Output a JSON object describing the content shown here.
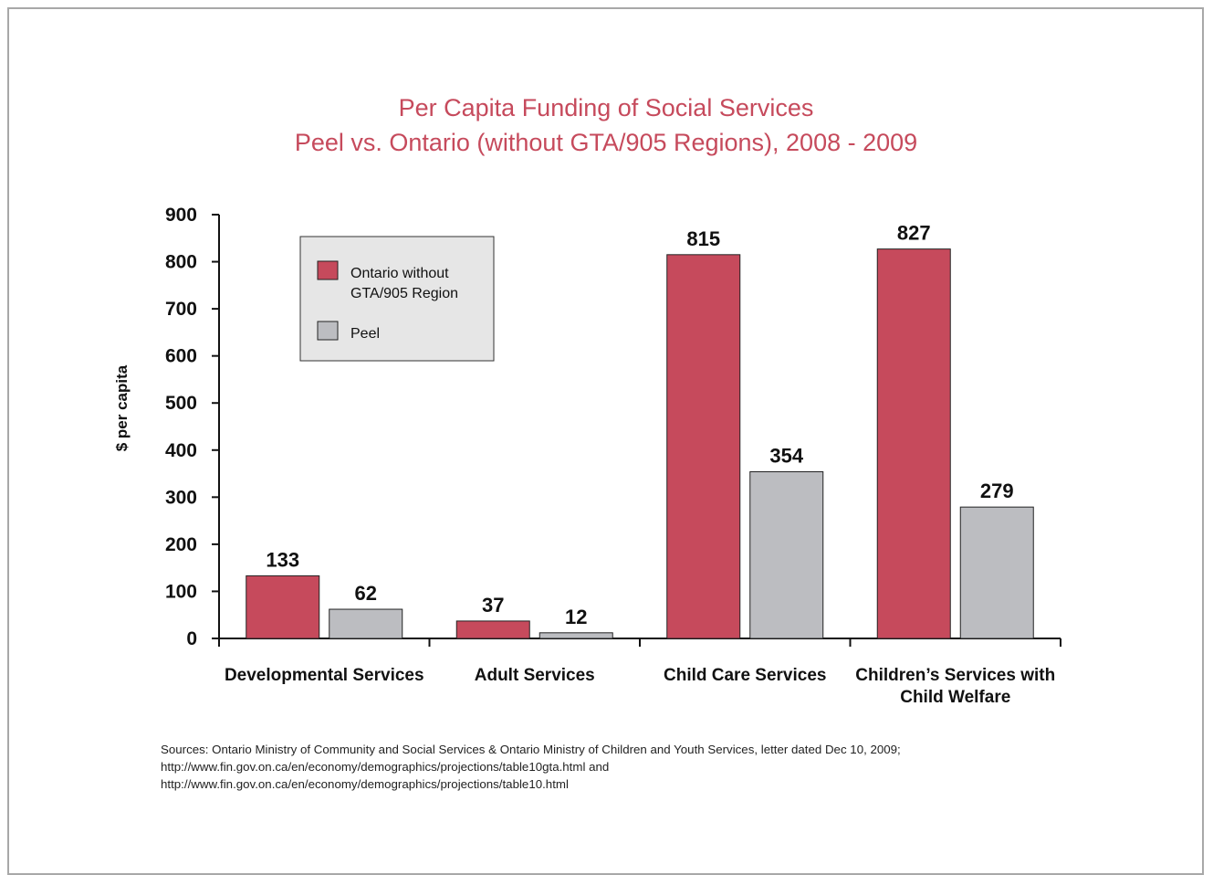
{
  "chart_data": {
    "type": "bar",
    "title": "Per Capita Funding of Social Services",
    "subtitle": "Peel vs. Ontario (without GTA/905 Regions), 2008 - 2009",
    "xlabel": "",
    "ylabel": "$ per capita",
    "ylim": [
      0,
      900
    ],
    "yticks": [
      0,
      100,
      200,
      300,
      400,
      500,
      600,
      700,
      800,
      900
    ],
    "categories": [
      [
        "Developmental Services"
      ],
      [
        "Adult Services"
      ],
      [
        "Child Care Services"
      ],
      [
        "Children’s Services with",
        "Child Welfare"
      ]
    ],
    "series": [
      {
        "name": "Ontario without GTA/905 Region",
        "name_lines": [
          "Ontario without",
          "GTA/905 Region"
        ],
        "color": "#c64a5c",
        "values": [
          133,
          37,
          815,
          827
        ]
      },
      {
        "name": "Peel",
        "name_lines": [
          "Peel"
        ],
        "color": "#bcbdc1",
        "values": [
          62,
          12,
          354,
          279
        ]
      }
    ],
    "data_labels": [
      [
        "133",
        "37",
        "815",
        "827"
      ],
      [
        "62",
        "12",
        "354",
        "279"
      ]
    ],
    "grid": false,
    "legend_position": "top-left"
  },
  "sources": {
    "lines": [
      "Sources: Ontario Ministry of Community and Social Services & Ontario Ministry of Children and Youth Services, letter dated Dec 10, 2009;",
      "http://www.fin.gov.on.ca/en/economy/demographics/projections/table10gta.html and",
      "http://www.fin.gov.on.ca/en/economy/demographics/projections/table10.html"
    ]
  }
}
